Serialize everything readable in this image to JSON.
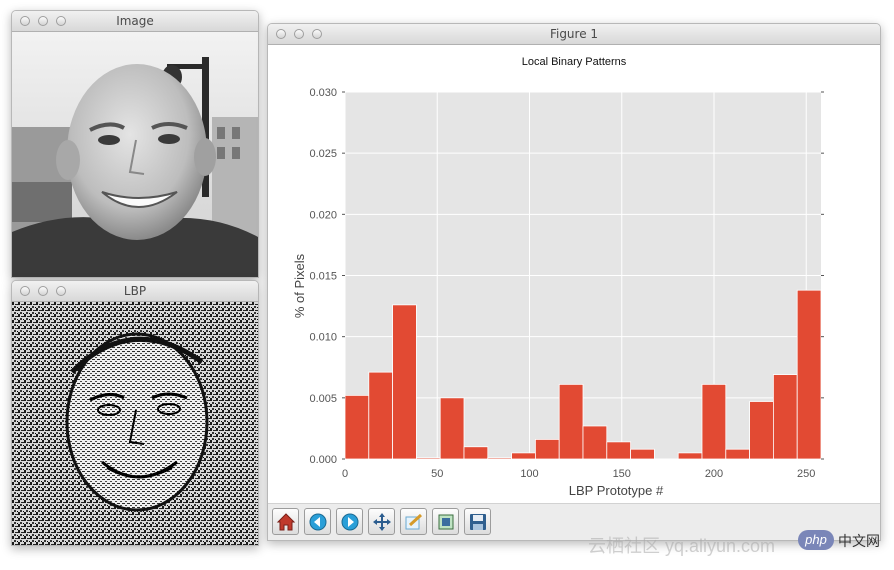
{
  "image_window": {
    "title": "Image"
  },
  "lbp_window": {
    "title": "LBP"
  },
  "figure_window": {
    "title": "Figure 1"
  },
  "toolbar": {
    "buttons": [
      {
        "name": "home-icon"
      },
      {
        "name": "back-icon"
      },
      {
        "name": "forward-icon"
      },
      {
        "name": "pan-icon"
      },
      {
        "name": "zoom-icon"
      },
      {
        "name": "subplots-icon"
      },
      {
        "name": "save-icon"
      }
    ]
  },
  "watermark": {
    "text_left": "云栖社区 yq.aliyun.com",
    "text_php": "php",
    "text_cn": "中文网"
  },
  "chart_data": {
    "type": "bar",
    "title": "Local Binary Patterns",
    "xlabel": "LBP Prototype #",
    "ylabel": "% of Pixels",
    "xlim": [
      0,
      258
    ],
    "ylim": [
      0,
      0.03
    ],
    "grid": true,
    "bar_color": "#e24a33",
    "bin_width": 12.9,
    "x_ticks": [
      0,
      50,
      100,
      150,
      200,
      250
    ],
    "y_ticks": [
      "0.000",
      "0.005",
      "0.010",
      "0.015",
      "0.020",
      "0.025",
      "0.030"
    ],
    "values": [
      0.0052,
      0.0071,
      0.0126,
      0.0001,
      0.005,
      0.001,
      0.0001,
      0.0005,
      0.0016,
      0.0061,
      0.0027,
      0.0014,
      0.0008,
      0.0,
      0.0005,
      0.0061,
      0.0008,
      0.0047,
      0.0069,
      0.0138
    ]
  }
}
